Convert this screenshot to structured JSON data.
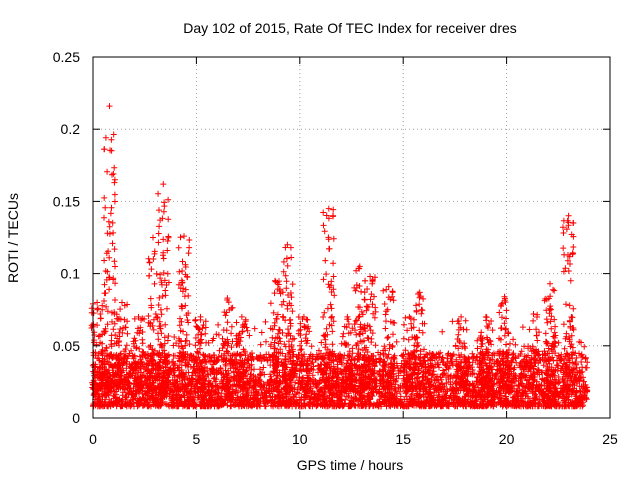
{
  "chart_data": {
    "type": "scatter",
    "title": "Day 102 of 2015, Rate Of TEC Index for receiver dres",
    "xlabel": "GPS time / hours",
    "ylabel": "ROTI / TECUs",
    "xlim": [
      0,
      25
    ],
    "ylim": [
      0,
      0.25
    ],
    "xticks": [
      0,
      5,
      10,
      15,
      20,
      25
    ],
    "yticks": [
      0,
      0.05,
      0.1,
      0.15,
      0.2,
      0.25
    ],
    "xtick_labels": [
      "0",
      "5",
      "10",
      "15",
      "20",
      "25"
    ],
    "ytick_labels": [
      "0",
      "0.05",
      "0.1",
      "0.15",
      "0.2",
      "0.25"
    ],
    "grid": true,
    "marker": "+",
    "color": "#ff0000",
    "series": [
      {
        "name": "ROTI",
        "background": {
          "x_range": [
            0,
            23.9
          ],
          "samples_per_hour": 380,
          "base_range": [
            0.008,
            0.045
          ]
        },
        "activity": [
          {
            "t": 0.2,
            "ymax": 0.08
          },
          {
            "t": 0.8,
            "ymax": 0.216
          },
          {
            "t": 1.4,
            "ymax": 0.08
          },
          {
            "t": 2.2,
            "ymax": 0.07
          },
          {
            "t": 2.9,
            "ymax": 0.125
          },
          {
            "t": 3.4,
            "ymax": 0.162
          },
          {
            "t": 4.4,
            "ymax": 0.126
          },
          {
            "t": 5.2,
            "ymax": 0.07
          },
          {
            "t": 6.5,
            "ymax": 0.083
          },
          {
            "t": 7.2,
            "ymax": 0.07
          },
          {
            "t": 8.8,
            "ymax": 0.095
          },
          {
            "t": 9.4,
            "ymax": 0.12
          },
          {
            "t": 10.2,
            "ymax": 0.07
          },
          {
            "t": 11.4,
            "ymax": 0.145
          },
          {
            "t": 12.3,
            "ymax": 0.07
          },
          {
            "t": 12.9,
            "ymax": 0.105
          },
          {
            "t": 13.4,
            "ymax": 0.098
          },
          {
            "t": 14.3,
            "ymax": 0.091
          },
          {
            "t": 15.3,
            "ymax": 0.07
          },
          {
            "t": 15.8,
            "ymax": 0.087
          },
          {
            "t": 17.8,
            "ymax": 0.07
          },
          {
            "t": 19.0,
            "ymax": 0.07
          },
          {
            "t": 19.9,
            "ymax": 0.084
          },
          {
            "t": 21.3,
            "ymax": 0.072
          },
          {
            "t": 22.1,
            "ymax": 0.093
          },
          {
            "t": 23.0,
            "ymax": 0.14
          }
        ]
      }
    ]
  }
}
